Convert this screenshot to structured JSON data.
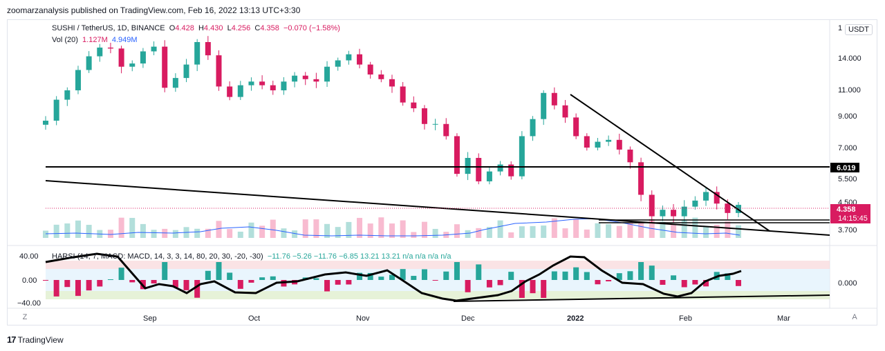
{
  "header": {
    "publisher": "zoomarzanalysis published on TradingView.com, Feb 16, 2022 13:13 UTC+3:30"
  },
  "legend": {
    "symbol": "SUSHI / TetherUS, 1D, BINANCE",
    "open_label": "O",
    "open": "4.428",
    "high_label": "H",
    "high": "4.430",
    "low_label": "L",
    "low": "4.256",
    "close_label": "C",
    "close": "4.358",
    "change": "−0.070 (−1.58%)",
    "vol_label": "Vol (20)",
    "vol_value": "1.127M",
    "vol_ma": "4.949M"
  },
  "indicator": {
    "name": "HARSI",
    "params": "(14, 7, MACD: MACD, 14, 3, 3, 14, 80, 20, 30, -20, -30)",
    "values": "−11.76  −5.26  −11.76  −6.85  13.21  13.21  n/a  n/a  n/a  n/a",
    "axis_labels": [
      "40.00",
      "0.00",
      "−40.00"
    ],
    "right_label": "0.000"
  },
  "currency": "USDT",
  "price_axis_labels": [
    "14.000",
    "11.000",
    "9.000",
    "7.000",
    "5.500",
    "4.500",
    "3.700"
  ],
  "price_axis_cut_label": "1",
  "price_tags": {
    "level": "6.019",
    "last": "4.358",
    "countdown": "14:15:45"
  },
  "time_axis_labels": [
    "Sep",
    "Oct",
    "Nov",
    "Dec",
    "2022",
    "Feb",
    "Mar"
  ],
  "corner_buttons": {
    "left": "Z",
    "right": "A"
  },
  "branding": {
    "name": "TradingView",
    "mark": "17"
  },
  "colors": {
    "up": "#26a69a",
    "down": "#d81b60",
    "vol_ma": "#2962ff",
    "macd_up": "#26a69a",
    "macd_down": "#d81b60"
  },
  "chart_data": {
    "type": "candlestick",
    "symbol": "SUSHI/USDT",
    "interval": "1D",
    "y_scale": "log",
    "ylim": [
      3.4,
      16.5
    ],
    "x_labels": [
      "Sep",
      "Oct",
      "Nov",
      "Dec",
      "2022",
      "Feb",
      "Mar"
    ],
    "close_series": [
      {
        "date": "2021-08-17",
        "close": 8.2
      },
      {
        "date": "2021-08-20",
        "close": 9.6
      },
      {
        "date": "2021-08-23",
        "close": 10.3
      },
      {
        "date": "2021-08-26",
        "close": 12.0
      },
      {
        "date": "2021-08-29",
        "close": 13.3
      },
      {
        "date": "2021-09-01",
        "close": 14.2
      },
      {
        "date": "2021-09-04",
        "close": 14.1
      },
      {
        "date": "2021-09-07",
        "close": 12.3
      },
      {
        "date": "2021-09-10",
        "close": 12.6
      },
      {
        "date": "2021-09-13",
        "close": 13.8
      },
      {
        "date": "2021-09-15",
        "close": 14.3
      },
      {
        "date": "2021-09-18",
        "close": 10.5
      },
      {
        "date": "2021-09-20",
        "close": 11.3
      },
      {
        "date": "2021-09-23",
        "close": 12.5
      },
      {
        "date": "2021-09-26",
        "close": 14.8
      },
      {
        "date": "2021-09-28",
        "close": 13.4
      },
      {
        "date": "2021-10-01",
        "close": 10.6
      },
      {
        "date": "2021-10-04",
        "close": 9.8
      },
      {
        "date": "2021-10-07",
        "close": 10.7
      },
      {
        "date": "2021-10-10",
        "close": 11.0
      },
      {
        "date": "2021-10-13",
        "close": 10.7
      },
      {
        "date": "2021-10-16",
        "close": 10.3
      },
      {
        "date": "2021-10-19",
        "close": 11.0
      },
      {
        "date": "2021-10-22",
        "close": 11.5
      },
      {
        "date": "2021-10-25",
        "close": 11.2
      },
      {
        "date": "2021-10-28",
        "close": 11.0
      },
      {
        "date": "2021-10-31",
        "close": 12.3
      },
      {
        "date": "2021-11-03",
        "close": 12.9
      },
      {
        "date": "2021-11-05",
        "close": 13.5
      },
      {
        "date": "2021-11-08",
        "close": 12.5
      },
      {
        "date": "2021-11-11",
        "close": 11.6
      },
      {
        "date": "2021-11-14",
        "close": 11.2
      },
      {
        "date": "2021-11-17",
        "close": 10.6
      },
      {
        "date": "2021-11-20",
        "close": 9.4
      },
      {
        "date": "2021-11-23",
        "close": 9.0
      },
      {
        "date": "2021-11-26",
        "close": 8.0
      },
      {
        "date": "2021-11-29",
        "close": 8.0
      },
      {
        "date": "2021-12-02",
        "close": 7.3
      },
      {
        "date": "2021-12-04",
        "close": 5.5
      },
      {
        "date": "2021-12-07",
        "close": 6.2
      },
      {
        "date": "2021-12-10",
        "close": 5.2
      },
      {
        "date": "2021-12-13",
        "close": 5.6
      },
      {
        "date": "2021-12-16",
        "close": 5.9
      },
      {
        "date": "2021-12-19",
        "close": 5.4
      },
      {
        "date": "2021-12-22",
        "close": 7.3
      },
      {
        "date": "2021-12-25",
        "close": 8.3
      },
      {
        "date": "2021-12-27",
        "close": 10.1
      },
      {
        "date": "2021-12-29",
        "close": 9.2
      },
      {
        "date": "2022-01-01",
        "close": 8.4
      },
      {
        "date": "2022-01-04",
        "close": 7.3
      },
      {
        "date": "2022-01-07",
        "close": 6.7
      },
      {
        "date": "2022-01-10",
        "close": 7.0
      },
      {
        "date": "2022-01-13",
        "close": 7.1
      },
      {
        "date": "2022-01-16",
        "close": 6.6
      },
      {
        "date": "2022-01-19",
        "close": 6.0
      },
      {
        "date": "2022-01-21",
        "close": 4.7
      },
      {
        "date": "2022-01-23",
        "close": 4.0
      },
      {
        "date": "2022-01-26",
        "close": 4.2
      },
      {
        "date": "2022-01-29",
        "close": 4.0
      },
      {
        "date": "2022-02-01",
        "close": 4.3
      },
      {
        "date": "2022-02-04",
        "close": 4.5
      },
      {
        "date": "2022-02-07",
        "close": 4.8
      },
      {
        "date": "2022-02-10",
        "close": 4.4
      },
      {
        "date": "2022-02-13",
        "close": 4.1
      },
      {
        "date": "2022-02-16",
        "close": 4.358
      }
    ],
    "horizontal_level": 6.019,
    "last_price": 4.358,
    "volume_ma": "4.949M",
    "volume_last": "1.127M"
  }
}
